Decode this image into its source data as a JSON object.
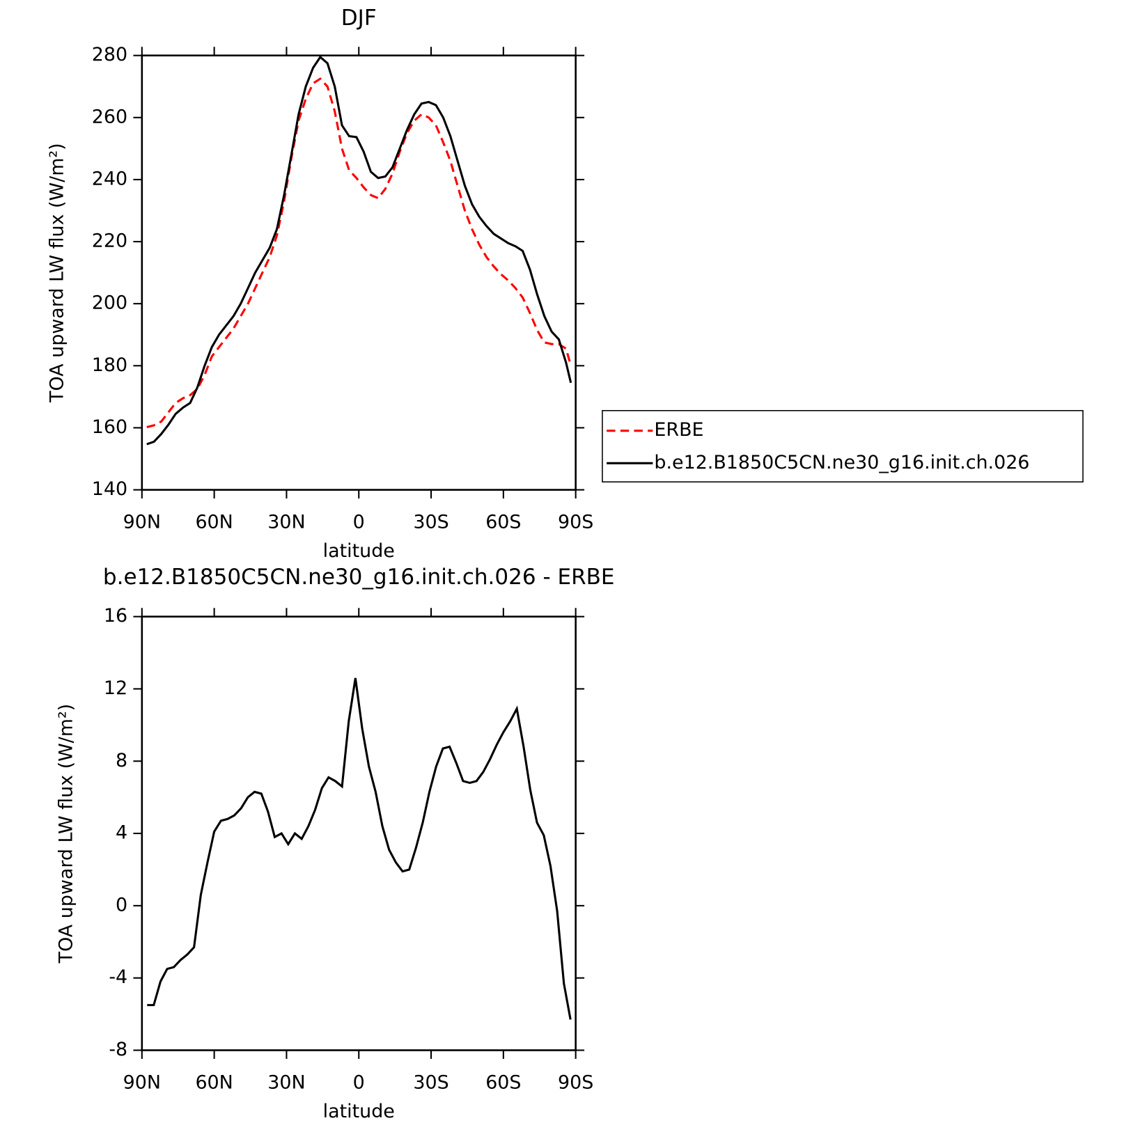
{
  "chart_data": [
    {
      "type": "line",
      "title": "DJF",
      "xlabel": "latitude",
      "ylabel": "TOA upward LW flux (W/m²)",
      "xlim": [
        90,
        -90
      ],
      "xticks": [
        {
          "value": 90,
          "label": "90N"
        },
        {
          "value": 60,
          "label": "60N"
        },
        {
          "value": 30,
          "label": "30N"
        },
        0,
        {
          "value": -30,
          "label": "30S"
        },
        {
          "value": -60,
          "label": "60S"
        },
        {
          "value": -90,
          "label": "90S"
        }
      ],
      "ylim": [
        140,
        280
      ],
      "yticks": [
        140,
        160,
        180,
        200,
        220,
        240,
        260,
        280
      ],
      "x": [
        88,
        85,
        82,
        79,
        76,
        73,
        70,
        67,
        64,
        61,
        58,
        55,
        52,
        49,
        46,
        43,
        40,
        37,
        34,
        31,
        28,
        25,
        22,
        19,
        16,
        13,
        10,
        7,
        4,
        1,
        -2,
        -5,
        -8,
        -11,
        -14,
        -17,
        -20,
        -23,
        -26,
        -29,
        -32,
        -35,
        -38,
        -41,
        -44,
        -47,
        -50,
        -53,
        -56,
        -59,
        -62,
        -65,
        -68,
        -71,
        -74,
        -77,
        -80,
        -83,
        -86,
        -88
      ],
      "series": [
        {
          "name": "ERBE",
          "color": "#ff0000",
          "dash": true,
          "values": [
            160.2,
            160.8,
            162,
            165,
            168,
            169.5,
            170.5,
            172.5,
            177,
            183,
            186,
            189,
            192,
            196,
            200,
            205,
            210,
            215,
            222,
            233,
            247,
            259,
            266,
            271,
            272.5,
            270,
            262,
            250,
            243,
            240.5,
            237.5,
            235,
            234,
            237,
            242,
            249,
            255,
            259,
            261,
            260,
            257.5,
            252,
            246,
            238,
            230,
            224,
            219,
            215,
            212,
            209.5,
            207.5,
            205,
            202,
            197,
            191.5,
            187.5,
            187,
            187,
            185.5,
            180
          ]
        },
        {
          "name": "b.e12.B1850C5CN.ne30_g16.init.ch.026",
          "color": "#000000",
          "dash": false,
          "values": [
            154.7,
            155.5,
            158,
            161,
            164.5,
            166.5,
            168,
            173,
            180,
            186,
            190,
            193,
            196,
            200,
            205,
            210,
            214,
            218,
            224,
            235,
            248,
            261,
            270,
            276,
            279.5,
            277.5,
            270,
            257.5,
            254,
            253.7,
            249,
            242.5,
            240.5,
            241,
            244,
            250,
            256,
            261,
            264.5,
            265,
            264,
            260,
            254,
            246,
            238,
            232,
            228,
            225,
            222.5,
            221,
            219.5,
            218.5,
            217,
            211,
            203,
            196,
            191,
            188.5,
            181,
            174.5
          ]
        }
      ]
    },
    {
      "type": "line",
      "title": "b.e12.B1850C5CN.ne30_g16.init.ch.026 - ERBE",
      "xlabel": "latitude",
      "ylabel": "TOA upward LW flux (W/m²)",
      "xlim": [
        90,
        -90
      ],
      "xticks": [
        {
          "value": 90,
          "label": "90N"
        },
        {
          "value": 60,
          "label": "60N"
        },
        {
          "value": 30,
          "label": "30N"
        },
        0,
        {
          "value": -30,
          "label": "30S"
        },
        {
          "value": -60,
          "label": "60S"
        },
        {
          "value": -90,
          "label": "90S"
        }
      ],
      "ylim": [
        -8,
        16
      ],
      "yticks": [
        -8,
        -4,
        0,
        4,
        8,
        12,
        16
      ],
      "x": [
        87.86,
        85.1,
        82.31,
        79.53,
        76.74,
        73.95,
        71.16,
        68.37,
        65.58,
        62.79,
        60.0,
        57.21,
        54.42,
        51.63,
        48.84,
        46.05,
        43.26,
        40.47,
        37.67,
        34.88,
        32.09,
        29.3,
        26.51,
        23.72,
        20.93,
        18.14,
        15.35,
        12.56,
        9.77,
        6.98,
        4.19,
        1.4,
        -1.4,
        -4.19,
        -6.98,
        -9.77,
        -12.56,
        -15.35,
        -18.14,
        -20.93,
        -23.72,
        -26.51,
        -29.3,
        -32.09,
        -34.88,
        -37.67,
        -40.47,
        -43.26,
        -46.05,
        -48.84,
        -51.63,
        -54.42,
        -57.21,
        -60.0,
        -62.79,
        -65.58,
        -68.37,
        -71.16,
        -73.95,
        -76.74,
        -79.53,
        -82.31,
        -85.1,
        -87.86
      ],
      "series": [
        {
          "name": "b.e12.B1850C5CN.ne30_g16.init.ch.026 - ERBE",
          "color": "#000000",
          "dash": false,
          "values": [
            -5.5,
            -5.5,
            -4.2,
            -3.5,
            -3.4,
            -3.0,
            -2.7,
            -2.3,
            0.6,
            2.4,
            4.1,
            4.7,
            4.8,
            5.0,
            5.4,
            6.0,
            6.3,
            6.2,
            5.2,
            3.8,
            4.0,
            3.4,
            4.0,
            3.7,
            4.4,
            5.3,
            6.5,
            7.1,
            6.9,
            6.6,
            10.2,
            12.6,
            9.8,
            7.7,
            6.3,
            4.4,
            3.1,
            2.4,
            1.9,
            2.0,
            3.2,
            4.6,
            6.3,
            7.7,
            8.7,
            8.8,
            7.9,
            6.9,
            6.8,
            6.9,
            7.4,
            8.1,
            8.9,
            9.6,
            10.2,
            10.9,
            8.8,
            6.4,
            4.6,
            3.9,
            2.2,
            -0.3,
            -4.3,
            -6.3
          ]
        }
      ]
    }
  ]
}
